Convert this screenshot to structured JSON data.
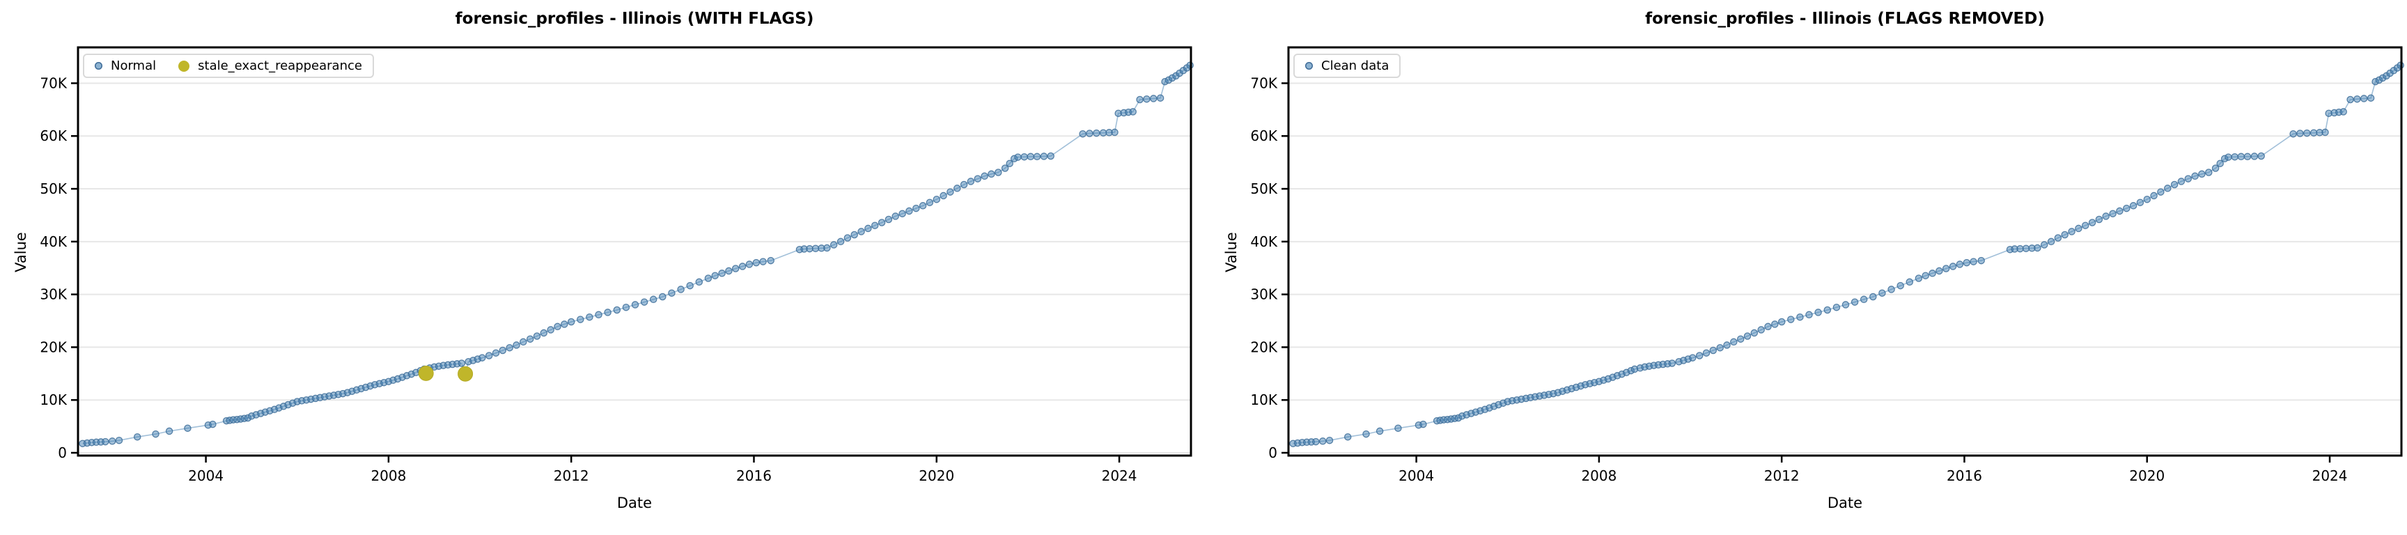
{
  "figure": {
    "panels": [
      {
        "title": "forensic_profiles - Illinois (WITH FLAGS)",
        "xlabel": "Date",
        "ylabel": "Value",
        "legend": [
          {
            "label": "Normal",
            "type": "normal"
          },
          {
            "label": "stale_exact_reappearance",
            "type": "flag"
          }
        ]
      },
      {
        "title": "forensic_profiles - Illinois (FLAGS REMOVED)",
        "xlabel": "Date",
        "ylabel": "Value",
        "legend": [
          {
            "label": "Clean data",
            "type": "normal"
          }
        ]
      }
    ],
    "colors": {
      "normal_fill": "rgba(70,130,180,0.5)",
      "normal_edge": "rgba(60,108,152,0.85)",
      "line": "rgba(70,130,180,0.5)",
      "flag_fill": "#c0b62a",
      "grid": "#e7e7e7",
      "spine": "#000000"
    }
  },
  "shared": {
    "normal_points": [
      [
        2001.3,
        1750
      ],
      [
        2001.4,
        1850
      ],
      [
        2001.5,
        1950
      ],
      [
        2001.6,
        2000
      ],
      [
        2001.7,
        2050
      ],
      [
        2001.8,
        2100
      ],
      [
        2001.95,
        2200
      ],
      [
        2002.1,
        2350
      ],
      [
        2002.5,
        3000
      ],
      [
        2002.9,
        3550
      ],
      [
        2003.2,
        4100
      ],
      [
        2003.6,
        4650
      ],
      [
        2004.05,
        5250
      ],
      [
        2004.15,
        5400
      ],
      [
        2004.45,
        6050
      ],
      [
        2004.52,
        6150
      ],
      [
        2004.6,
        6250
      ],
      [
        2004.68,
        6300
      ],
      [
        2004.76,
        6400
      ],
      [
        2004.84,
        6500
      ],
      [
        2004.92,
        6600
      ],
      [
        2005.0,
        6950
      ],
      [
        2005.1,
        7200
      ],
      [
        2005.2,
        7450
      ],
      [
        2005.3,
        7700
      ],
      [
        2005.4,
        7950
      ],
      [
        2005.5,
        8200
      ],
      [
        2005.6,
        8500
      ],
      [
        2005.7,
        8800
      ],
      [
        2005.8,
        9100
      ],
      [
        2005.9,
        9400
      ],
      [
        2006.0,
        9700
      ],
      [
        2006.1,
        9850
      ],
      [
        2006.2,
        10000
      ],
      [
        2006.3,
        10150
      ],
      [
        2006.4,
        10300
      ],
      [
        2006.5,
        10450
      ],
      [
        2006.6,
        10600
      ],
      [
        2006.7,
        10750
      ],
      [
        2006.8,
        10900
      ],
      [
        2006.9,
        11050
      ],
      [
        2007.0,
        11200
      ],
      [
        2007.1,
        11400
      ],
      [
        2007.2,
        11650
      ],
      [
        2007.3,
        11900
      ],
      [
        2007.4,
        12150
      ],
      [
        2007.5,
        12400
      ],
      [
        2007.6,
        12650
      ],
      [
        2007.7,
        12900
      ],
      [
        2007.8,
        13100
      ],
      [
        2007.9,
        13300
      ],
      [
        2008.0,
        13500
      ],
      [
        2008.1,
        13750
      ],
      [
        2008.2,
        14000
      ],
      [
        2008.3,
        14300
      ],
      [
        2008.4,
        14600
      ],
      [
        2008.5,
        14900
      ],
      [
        2008.6,
        15200
      ],
      [
        2008.7,
        15550
      ],
      [
        2008.78,
        15850
      ],
      [
        2008.9,
        16050
      ],
      [
        2009.0,
        16250
      ],
      [
        2009.1,
        16400
      ],
      [
        2009.2,
        16550
      ],
      [
        2009.3,
        16650
      ],
      [
        2009.4,
        16750
      ],
      [
        2009.5,
        16850
      ],
      [
        2009.6,
        16950
      ],
      [
        2009.75,
        17250
      ],
      [
        2009.85,
        17500
      ],
      [
        2009.95,
        17750
      ],
      [
        2010.05,
        18000
      ],
      [
        2010.2,
        18400
      ],
      [
        2010.35,
        18900
      ],
      [
        2010.5,
        19400
      ],
      [
        2010.65,
        19900
      ],
      [
        2010.8,
        20400
      ],
      [
        2010.95,
        21000
      ],
      [
        2011.1,
        21550
      ],
      [
        2011.25,
        22100
      ],
      [
        2011.4,
        22700
      ],
      [
        2011.55,
        23300
      ],
      [
        2011.7,
        23900
      ],
      [
        2011.85,
        24350
      ],
      [
        2012.0,
        24800
      ],
      [
        2012.2,
        25250
      ],
      [
        2012.4,
        25700
      ],
      [
        2012.6,
        26150
      ],
      [
        2012.8,
        26600
      ],
      [
        2013.0,
        27050
      ],
      [
        2013.2,
        27550
      ],
      [
        2013.4,
        28050
      ],
      [
        2013.6,
        28550
      ],
      [
        2013.8,
        29050
      ],
      [
        2014.0,
        29550
      ],
      [
        2014.2,
        30250
      ],
      [
        2014.4,
        30950
      ],
      [
        2014.6,
        31650
      ],
      [
        2014.8,
        32350
      ],
      [
        2015.0,
        33050
      ],
      [
        2015.15,
        33550
      ],
      [
        2015.3,
        34000
      ],
      [
        2015.45,
        34450
      ],
      [
        2015.6,
        34900
      ],
      [
        2015.75,
        35300
      ],
      [
        2015.9,
        35700
      ],
      [
        2016.05,
        36000
      ],
      [
        2016.2,
        36200
      ],
      [
        2016.37,
        36400
      ],
      [
        2017.0,
        38500
      ],
      [
        2017.1,
        38600
      ],
      [
        2017.22,
        38650
      ],
      [
        2017.35,
        38700
      ],
      [
        2017.48,
        38750
      ],
      [
        2017.6,
        38800
      ],
      [
        2017.75,
        39400
      ],
      [
        2017.9,
        40000
      ],
      [
        2018.05,
        40700
      ],
      [
        2018.2,
        41300
      ],
      [
        2018.35,
        41900
      ],
      [
        2018.5,
        42500
      ],
      [
        2018.65,
        43050
      ],
      [
        2018.8,
        43600
      ],
      [
        2018.95,
        44200
      ],
      [
        2019.1,
        44800
      ],
      [
        2019.25,
        45300
      ],
      [
        2019.4,
        45800
      ],
      [
        2019.55,
        46300
      ],
      [
        2019.7,
        46800
      ],
      [
        2019.85,
        47400
      ],
      [
        2020.0,
        48000
      ],
      [
        2020.15,
        48700
      ],
      [
        2020.3,
        49400
      ],
      [
        2020.45,
        50100
      ],
      [
        2020.6,
        50800
      ],
      [
        2020.75,
        51400
      ],
      [
        2020.9,
        51900
      ],
      [
        2021.05,
        52400
      ],
      [
        2021.2,
        52800
      ],
      [
        2021.35,
        53100
      ],
      [
        2021.5,
        53900
      ],
      [
        2021.6,
        54800
      ],
      [
        2021.7,
        55700
      ],
      [
        2021.78,
        56000
      ],
      [
        2021.92,
        56050
      ],
      [
        2022.06,
        56100
      ],
      [
        2022.2,
        56100
      ],
      [
        2022.35,
        56150
      ],
      [
        2022.5,
        56200
      ],
      [
        2023.2,
        60400
      ],
      [
        2023.35,
        60500
      ],
      [
        2023.5,
        60550
      ],
      [
        2023.65,
        60600
      ],
      [
        2023.78,
        60650
      ],
      [
        2023.9,
        60700
      ],
      [
        2023.98,
        64300
      ],
      [
        2024.1,
        64400
      ],
      [
        2024.2,
        64500
      ],
      [
        2024.3,
        64600
      ],
      [
        2024.45,
        66900
      ],
      [
        2024.6,
        67000
      ],
      [
        2024.75,
        67100
      ],
      [
        2024.9,
        67200
      ],
      [
        2025.0,
        70300
      ],
      [
        2025.08,
        70600
      ],
      [
        2025.16,
        71000
      ],
      [
        2025.24,
        71400
      ],
      [
        2025.32,
        71900
      ],
      [
        2025.4,
        72400
      ],
      [
        2025.48,
        72900
      ],
      [
        2025.55,
        73400
      ]
    ],
    "flag_points": [
      [
        2008.82,
        15050
      ],
      [
        2009.68,
        14950
      ]
    ]
  },
  "chart_data": [
    {
      "type": "scatter",
      "title": "forensic_profiles - Illinois (WITH FLAGS)",
      "xlabel": "Date",
      "ylabel": "Value",
      "xlim": [
        2001.2,
        2025.57
      ],
      "ylim": [
        -530,
        76790
      ],
      "x_ticks": [
        2004,
        2008,
        2012,
        2016,
        2020,
        2024
      ],
      "y_ticks": [
        0,
        10000,
        20000,
        30000,
        40000,
        50000,
        60000,
        70000
      ],
      "y_tick_labels": [
        "0",
        "10K",
        "20K",
        "30K",
        "40K",
        "50K",
        "60K",
        "70K"
      ],
      "grid": "horizontal",
      "legend_position": "upper left",
      "series": [
        {
          "name": "Normal",
          "points": "normal_points",
          "marker_radius": 4.6,
          "fill": "rgba(70,130,180,0.5)",
          "edge": "rgba(60,108,152,0.85)",
          "line_with_flags": true
        },
        {
          "name": "stale_exact_reappearance",
          "points": "flag_points",
          "marker_radius": 10.5,
          "fill": "#c0b62a",
          "edge": "#b3a922"
        }
      ]
    },
    {
      "type": "scatter",
      "title": "forensic_profiles - Illinois (FLAGS REMOVED)",
      "xlabel": "Date",
      "ylabel": "Value",
      "xlim": [
        2001.2,
        2025.57
      ],
      "ylim": [
        -530,
        76790
      ],
      "x_ticks": [
        2004,
        2008,
        2012,
        2016,
        2020,
        2024
      ],
      "y_ticks": [
        0,
        10000,
        20000,
        30000,
        40000,
        50000,
        60000,
        70000
      ],
      "y_tick_labels": [
        "0",
        "10K",
        "20K",
        "30K",
        "40K",
        "50K",
        "60K",
        "70K"
      ],
      "grid": "horizontal",
      "legend_position": "upper left",
      "series": [
        {
          "name": "Clean data",
          "points": "normal_points",
          "marker_radius": 4.6,
          "fill": "rgba(70,130,180,0.5)",
          "edge": "rgba(60,108,152,0.85)"
        }
      ]
    }
  ]
}
